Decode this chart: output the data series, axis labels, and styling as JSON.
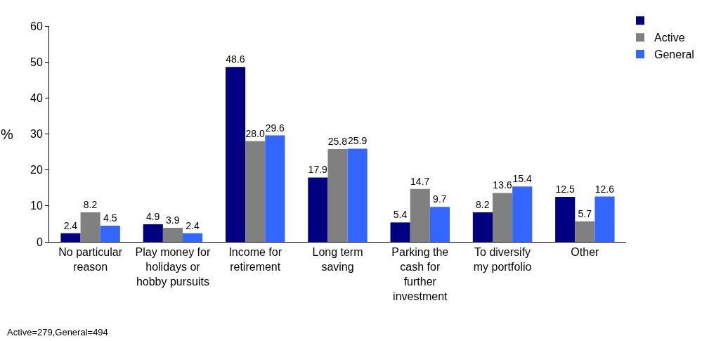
{
  "chart_data": {
    "type": "bar",
    "ylabel": "%",
    "categories": [
      "No particular reason",
      "Play money for holidays or hobby pursuits",
      "Income for retirement",
      "Long term saving",
      "Parking the cash for further investment",
      "To diversify my portfolio",
      "Other"
    ],
    "series": [
      {
        "color": "#000080",
        "values": [
          2.4,
          4.9,
          48.6,
          17.9,
          5.4,
          8.2,
          12.5
        ]
      },
      {
        "name": "Active",
        "color": "#808080",
        "values": [
          8.2,
          3.9,
          28.0,
          25.8,
          14.7,
          13.6,
          5.7
        ]
      },
      {
        "name": "General",
        "color": "#3366ff",
        "values": [
          4.5,
          2.4,
          29.6,
          25.9,
          9.7,
          15.4,
          12.6
        ]
      }
    ],
    "value_labels": [
      [
        "2.4",
        "4.9",
        "48.6",
        "17.9",
        "5.4",
        "8.2",
        "12.5"
      ],
      [
        "8.2",
        "3.9",
        "28.0",
        "25.8",
        "14.7",
        "13.6",
        "5.7"
      ],
      [
        "4.5",
        "2.4",
        "29.6",
        "25.9",
        "9.7",
        "15.4",
        "12.6"
      ]
    ],
    "ylim": [
      0,
      60
    ],
    "yticks": [
      0,
      10,
      20,
      30,
      40,
      50,
      60
    ],
    "grid": false,
    "legend": "top right",
    "annotations": [
      "Active=279,General=494"
    ]
  }
}
